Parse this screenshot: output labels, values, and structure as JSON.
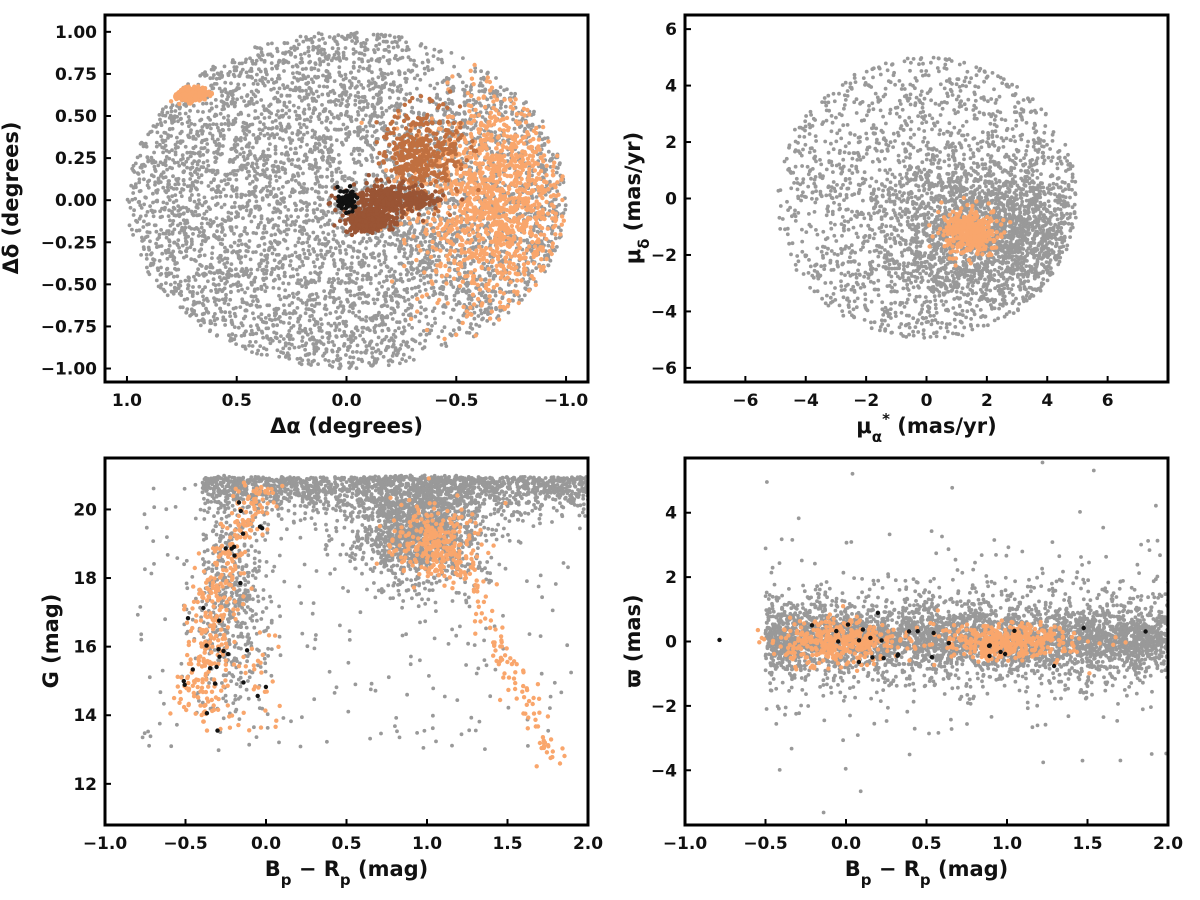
{
  "chart_data": [
    {
      "id": "sky",
      "type": "scatter",
      "title": "",
      "xlabel": "Δα (degrees)",
      "ylabel": "Δδ (degrees)",
      "xlim": [
        1.1,
        -1.1
      ],
      "ylim": [
        -1.08,
        1.1
      ],
      "xticks": [
        1.0,
        0.5,
        0.0,
        -0.5,
        -1.0
      ],
      "xtick_labels": [
        "1.0",
        "0.5",
        "0.0",
        "−0.5",
        "−1.0"
      ],
      "yticks": [
        1.0,
        0.75,
        0.5,
        0.25,
        0.0,
        -0.25,
        -0.5,
        -0.75,
        -1.0
      ],
      "ytick_labels": [
        "1.00",
        "0.75",
        "0.50",
        "0.25",
        "0.00",
        "−0.25",
        "−0.50",
        "−0.75",
        "−1.00"
      ],
      "grid": false,
      "field": {
        "shape": "disk",
        "center": [
          0,
          0
        ],
        "radius": 1.0,
        "color": "#999999"
      },
      "groups": [
        {
          "color": "#f9a66c",
          "region": {
            "center": [
              -0.68,
              0.0
            ],
            "spread": [
              0.18,
              0.32
            ]
          }
        },
        {
          "color": "#f9a66c",
          "region": {
            "center": [
              0.72,
              0.63
            ],
            "spread": [
              0.04,
              0.02
            ]
          }
        },
        {
          "color": "#c07040",
          "region": {
            "center": [
              -0.35,
              0.28
            ],
            "spread": [
              0.09,
              0.12
            ]
          }
        },
        {
          "color": "#9a5535",
          "region": {
            "center": [
              -0.2,
              0.01
            ],
            "spread": [
              0.1,
              0.04
            ]
          }
        },
        {
          "color": "#9a5535",
          "region": {
            "center": [
              -0.1,
              -0.12
            ],
            "spread": [
              0.05,
              0.03
            ]
          }
        },
        {
          "color": "#111111",
          "region": {
            "center": [
              0.0,
              0.0
            ],
            "spread": [
              0.02,
              0.03
            ]
          }
        }
      ]
    },
    {
      "id": "pm",
      "type": "scatter",
      "title": "",
      "xlabel": "μ*α (mas/yr)",
      "ylabel": "μδ (mas/yr)",
      "xlim": [
        -8,
        8
      ],
      "ylim": [
        -6.5,
        6.5
      ],
      "xticks": [
        -6,
        -4,
        -2,
        0,
        2,
        4,
        6
      ],
      "xtick_labels": [
        "−6",
        "−4",
        "−2",
        "0",
        "2",
        "4",
        "6"
      ],
      "yticks": [
        6,
        4,
        2,
        0,
        -2,
        -4,
        -6
      ],
      "ytick_labels": [
        "6",
        "4",
        "2",
        "0",
        "−2",
        "−4",
        "−6"
      ],
      "grid": false,
      "field": {
        "shape": "disk",
        "center": [
          0,
          0
        ],
        "radius": 5.0,
        "color": "#999999",
        "dense_core": {
          "center": [
            2.2,
            -1.2
          ],
          "spread": [
            1.8,
            1.4
          ]
        }
      },
      "groups": [
        {
          "color": "#f9a66c",
          "region": {
            "center": [
              1.4,
              -1.2
            ],
            "spread": [
              0.45,
              0.4
            ]
          }
        }
      ]
    },
    {
      "id": "cmd",
      "type": "scatter",
      "title": "",
      "xlabel": "Bp − Rp (mag)",
      "ylabel": "G (mag)",
      "xlim": [
        -1.0,
        2.0
      ],
      "ylim": [
        10.8,
        21.5
      ],
      "xticks": [
        -1.0,
        -0.5,
        0.0,
        0.5,
        1.0,
        1.5,
        2.0
      ],
      "xtick_labels": [
        "−1.0",
        "−0.5",
        "0.0",
        "0.5",
        "1.0",
        "1.5",
        "2.0"
      ],
      "yticks": [
        20,
        18,
        16,
        14,
        12
      ],
      "ytick_labels": [
        "20",
        "18",
        "16",
        "14",
        "12"
      ],
      "grid": false,
      "field": {
        "shape": "cmd",
        "color": "#999999"
      },
      "groups": [
        {
          "color": "#f9a66c",
          "region": "main-sequence"
        },
        {
          "color": "#f9a66c",
          "region": "red-clump"
        },
        {
          "color": "#111111",
          "region": "main-sequence-sparse"
        }
      ]
    },
    {
      "id": "plx",
      "type": "scatter",
      "title": "",
      "xlabel": "Bp − Rp (mag)",
      "ylabel": "ϖ (mas)",
      "xlim": [
        -1.0,
        2.0
      ],
      "ylim": [
        -5.7,
        5.7
      ],
      "xticks": [
        -1.0,
        -0.5,
        0.0,
        0.5,
        1.0,
        1.5,
        2.0
      ],
      "xtick_labels": [
        "−1.0",
        "−0.5",
        "0.0",
        "0.5",
        "1.0",
        "1.5",
        "2.0"
      ],
      "yticks": [
        4,
        2,
        0,
        -2,
        -4
      ],
      "ytick_labels": [
        "4",
        "2",
        "0",
        "−2",
        "−4"
      ],
      "grid": false,
      "field": {
        "shape": "band",
        "color": "#999999"
      },
      "groups": [
        {
          "color": "#f9a66c",
          "region": {
            "center": [
              -0.05,
              0.0
            ],
            "spread": [
              0.18,
              0.35
            ]
          }
        },
        {
          "color": "#f9a66c",
          "region": {
            "center": [
              1.0,
              0.0
            ],
            "spread": [
              0.2,
              0.3
            ]
          }
        },
        {
          "color": "#111111",
          "region": {
            "center": [
              0.3,
              0.0
            ],
            "spread": [
              0.5,
              0.4
            ]
          }
        }
      ]
    }
  ]
}
